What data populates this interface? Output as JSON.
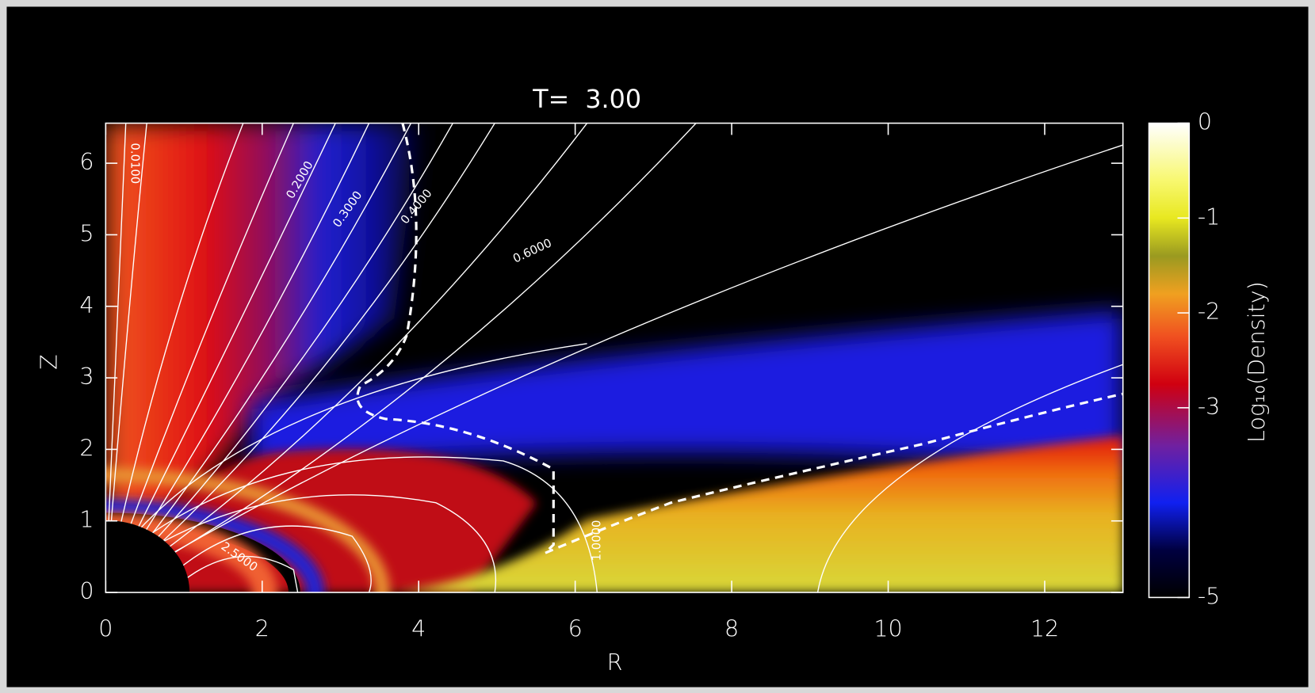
{
  "chart_data": {
    "type": "heatmap",
    "title": "T=  3.00",
    "x_label": "R",
    "y_label": "Z",
    "xlim": [
      0,
      13
    ],
    "xticks": [
      0,
      2,
      4,
      6,
      8,
      10,
      12
    ],
    "ylim": [
      0,
      6.56
    ],
    "yticks": [
      0,
      1,
      2,
      3,
      4,
      5,
      6
    ],
    "colorbar_label": "Log₁₀(Density)",
    "clim": [
      -5,
      0
    ],
    "cticks": [
      0,
      -1,
      -2,
      -3,
      -5
    ],
    "contour_labels": [
      "0.0100",
      "0.2000",
      "0.3000",
      "0.4000",
      "0.6000",
      "1.0000",
      "2.5000"
    ]
  }
}
